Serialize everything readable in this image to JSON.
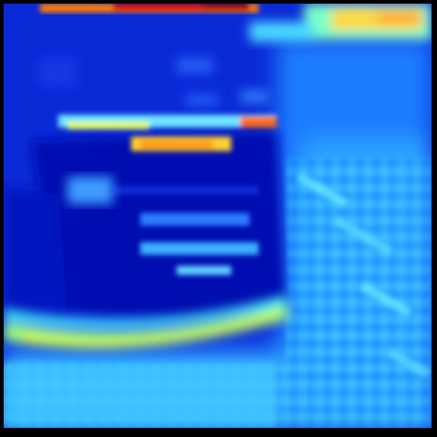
{
  "image": {
    "kind": "pseudocolor heatmap (jet colormap) of a blurry scene",
    "colormap": [
      "#00008f",
      "#0000ff",
      "#0080ff",
      "#00ffff",
      "#80ff80",
      "#ffff00",
      "#ff8000",
      "#ff0000",
      "#800000"
    ],
    "frame_color": "#000000"
  }
}
